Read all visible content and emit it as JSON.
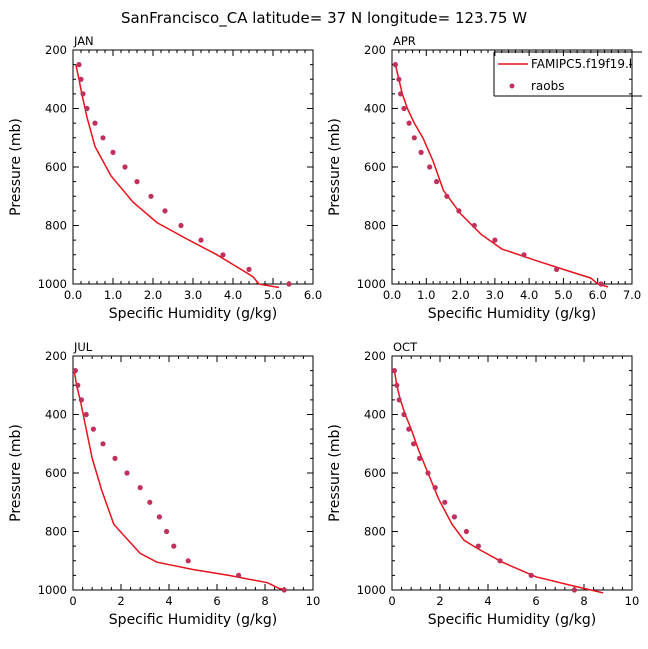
{
  "title": "SanFrancisco_CA  latitude= 37 N longitude= 123.75 W",
  "legend": {
    "model_label": "FAMIPC5.f19f19.l",
    "obs_label": "raobs"
  },
  "colors": {
    "model_line": "#e8121c",
    "obs_marker": "#c0305a"
  },
  "chart_data": [
    {
      "type": "line",
      "title": "JAN",
      "xlabel": "Specific Humidity (g/kg)",
      "ylabel": "Pressure (mb)",
      "xlim": [
        0,
        6
      ],
      "ylim": [
        200,
        1000
      ],
      "y_inverted": true,
      "xticks": [
        "0.0",
        "1.0",
        "2.0",
        "3.0",
        "4.0",
        "5.0",
        "6.0"
      ],
      "yticks": [
        "200",
        "400",
        "600",
        "800",
        "1000"
      ],
      "series": [
        {
          "name": "FAMIPC5.f19f19.l",
          "kind": "line",
          "points": [
            [
              0.07,
              250
            ],
            [
              0.15,
              300
            ],
            [
              0.22,
              350
            ],
            [
              0.35,
              430
            ],
            [
              0.55,
              530
            ],
            [
              0.95,
              630
            ],
            [
              1.5,
              720
            ],
            [
              2.1,
              790
            ],
            [
              2.9,
              850
            ],
            [
              3.6,
              900
            ],
            [
              4.2,
              950
            ],
            [
              4.5,
              975
            ],
            [
              4.65,
              1000
            ],
            [
              5.15,
              1012
            ]
          ]
        },
        {
          "name": "raobs",
          "kind": "scatter",
          "points": [
            [
              0.15,
              250
            ],
            [
              0.2,
              300
            ],
            [
              0.25,
              350
            ],
            [
              0.35,
              400
            ],
            [
              0.55,
              450
            ],
            [
              0.75,
              500
            ],
            [
              1.0,
              550
            ],
            [
              1.3,
              600
            ],
            [
              1.6,
              650
            ],
            [
              1.95,
              700
            ],
            [
              2.3,
              750
            ],
            [
              2.7,
              800
            ],
            [
              3.2,
              850
            ],
            [
              3.75,
              900
            ],
            [
              4.4,
              950
            ],
            [
              5.4,
              1000
            ]
          ]
        }
      ]
    },
    {
      "type": "line",
      "title": "APR",
      "xlabel": "Specific Humidity (g/kg)",
      "ylabel": "Pressure (mb)",
      "xlim": [
        0,
        7
      ],
      "ylim": [
        200,
        1000
      ],
      "y_inverted": true,
      "xticks": [
        "0.0",
        "1.0",
        "2.0",
        "3.0",
        "4.0",
        "5.0",
        "6.0",
        "7.0"
      ],
      "yticks": [
        "200",
        "400",
        "600",
        "800",
        "1000"
      ],
      "series": [
        {
          "name": "FAMIPC5.f19f19.l",
          "kind": "line",
          "points": [
            [
              0.1,
              250
            ],
            [
              0.2,
              300
            ],
            [
              0.3,
              350
            ],
            [
              0.45,
              400
            ],
            [
              0.65,
              450
            ],
            [
              0.9,
              500
            ],
            [
              1.2,
              580
            ],
            [
              1.5,
              680
            ],
            [
              2.0,
              760
            ],
            [
              2.6,
              830
            ],
            [
              3.2,
              880
            ],
            [
              4.2,
              920
            ],
            [
              5.0,
              950
            ],
            [
              5.8,
              980
            ],
            [
              6.0,
              1000
            ],
            [
              6.3,
              1010
            ]
          ]
        },
        {
          "name": "raobs",
          "kind": "scatter",
          "points": [
            [
              0.1,
              250
            ],
            [
              0.2,
              300
            ],
            [
              0.25,
              350
            ],
            [
              0.35,
              400
            ],
            [
              0.5,
              450
            ],
            [
              0.65,
              500
            ],
            [
              0.85,
              550
            ],
            [
              1.1,
              600
            ],
            [
              1.3,
              650
            ],
            [
              1.6,
              700
            ],
            [
              1.95,
              750
            ],
            [
              2.4,
              800
            ],
            [
              3.0,
              850
            ],
            [
              3.85,
              900
            ],
            [
              4.8,
              950
            ],
            [
              6.1,
              1000
            ]
          ]
        }
      ]
    },
    {
      "type": "line",
      "title": "JUL",
      "xlabel": "Specific Humidity (g/kg)",
      "ylabel": "Pressure (mb)",
      "xlim": [
        0,
        10
      ],
      "ylim": [
        200,
        1000
      ],
      "y_inverted": true,
      "xticks": [
        "0",
        "2",
        "4",
        "6",
        "8",
        "10"
      ],
      "yticks": [
        "200",
        "400",
        "600",
        "800",
        "1000"
      ],
      "series": [
        {
          "name": "FAMIPC5.f19f19.l",
          "kind": "line",
          "points": [
            [
              0.05,
              250
            ],
            [
              0.15,
              300
            ],
            [
              0.3,
              350
            ],
            [
              0.55,
              450
            ],
            [
              0.8,
              550
            ],
            [
              1.2,
              660
            ],
            [
              1.7,
              775
            ],
            [
              2.3,
              830
            ],
            [
              2.8,
              875
            ],
            [
              3.5,
              905
            ],
            [
              5.0,
              930
            ],
            [
              6.5,
              950
            ],
            [
              8.1,
              975
            ],
            [
              8.6,
              995
            ],
            [
              8.9,
              1000
            ]
          ]
        },
        {
          "name": "raobs",
          "kind": "scatter",
          "points": [
            [
              0.1,
              250
            ],
            [
              0.2,
              300
            ],
            [
              0.35,
              350
            ],
            [
              0.55,
              400
            ],
            [
              0.85,
              450
            ],
            [
              1.25,
              500
            ],
            [
              1.75,
              550
            ],
            [
              2.25,
              600
            ],
            [
              2.8,
              650
            ],
            [
              3.2,
              700
            ],
            [
              3.6,
              750
            ],
            [
              3.9,
              800
            ],
            [
              4.2,
              850
            ],
            [
              4.8,
              900
            ],
            [
              6.9,
              950
            ],
            [
              8.8,
              1000
            ]
          ]
        }
      ]
    },
    {
      "type": "line",
      "title": "OCT",
      "xlabel": "Specific Humidity (g/kg)",
      "ylabel": "Pressure (mb)",
      "xlim": [
        0,
        10
      ],
      "ylim": [
        200,
        1000
      ],
      "y_inverted": true,
      "xticks": [
        "0",
        "2",
        "4",
        "6",
        "8",
        "10"
      ],
      "yticks": [
        "200",
        "400",
        "600",
        "800",
        "1000"
      ],
      "series": [
        {
          "name": "FAMIPC5.f19f19.l",
          "kind": "line",
          "points": [
            [
              0.1,
              250
            ],
            [
              0.2,
              300
            ],
            [
              0.35,
              350
            ],
            [
              0.55,
              400
            ],
            [
              0.8,
              450
            ],
            [
              1.1,
              520
            ],
            [
              1.5,
              600
            ],
            [
              1.95,
              690
            ],
            [
              2.5,
              775
            ],
            [
              3.0,
              830
            ],
            [
              3.6,
              860
            ],
            [
              4.6,
              905
            ],
            [
              6.0,
              955
            ],
            [
              7.5,
              985
            ],
            [
              8.8,
              1010
            ]
          ]
        },
        {
          "name": "raobs",
          "kind": "scatter",
          "points": [
            [
              0.1,
              250
            ],
            [
              0.2,
              300
            ],
            [
              0.3,
              350
            ],
            [
              0.5,
              400
            ],
            [
              0.7,
              450
            ],
            [
              0.9,
              500
            ],
            [
              1.15,
              550
            ],
            [
              1.5,
              600
            ],
            [
              1.8,
              650
            ],
            [
              2.2,
              700
            ],
            [
              2.6,
              750
            ],
            [
              3.1,
              800
            ],
            [
              3.6,
              850
            ],
            [
              4.5,
              900
            ],
            [
              5.8,
              950
            ],
            [
              7.6,
              1000
            ]
          ]
        }
      ]
    }
  ]
}
